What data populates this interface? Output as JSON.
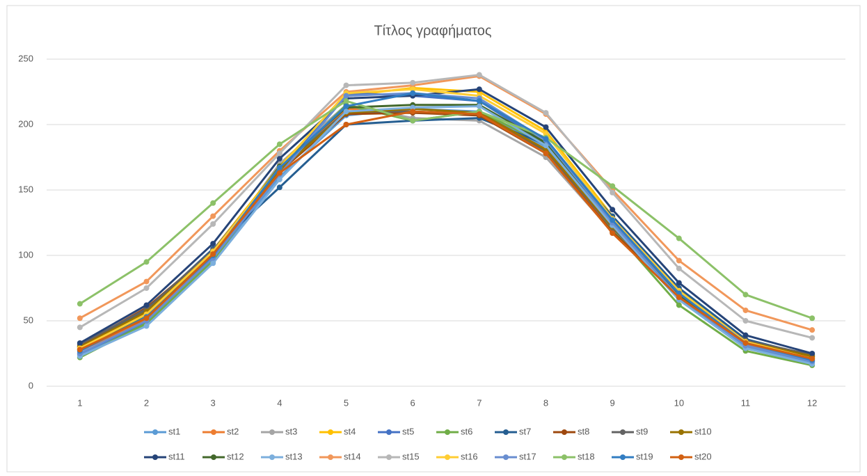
{
  "chart_data": {
    "type": "line",
    "title": "Τίτλος γραφήματος",
    "categories": [
      "1",
      "2",
      "3",
      "4",
      "5",
      "6",
      "7",
      "8",
      "9",
      "10",
      "11",
      "12"
    ],
    "ylim": [
      0,
      250
    ],
    "yticks": [
      0,
      50,
      100,
      150,
      200,
      250
    ],
    "grid": true,
    "legend": "bottom",
    "series": [
      {
        "name": "st1",
        "color": "#5B9BD5",
        "values": [
          24,
          47,
          95,
          160,
          207,
          212,
          210,
          183,
          122,
          66,
          30,
          18
        ]
      },
      {
        "name": "st2",
        "color": "#ED7D31",
        "values": [
          27,
          51,
          99,
          165,
          212,
          210,
          208,
          180,
          119,
          69,
          32,
          20
        ]
      },
      {
        "name": "st3",
        "color": "#A5A5A5",
        "values": [
          30,
          55,
          100,
          170,
          215,
          205,
          203,
          175,
          118,
          68,
          33,
          22
        ]
      },
      {
        "name": "st4",
        "color": "#FFC000",
        "values": [
          29,
          56,
          104,
          168,
          222,
          228,
          225,
          195,
          130,
          74,
          35,
          22
        ]
      },
      {
        "name": "st5",
        "color": "#4472C4",
        "values": [
          25,
          49,
          97,
          163,
          224,
          222,
          218,
          186,
          124,
          67,
          31,
          19
        ]
      },
      {
        "name": "st6",
        "color": "#70AD47",
        "values": [
          22,
          48,
          96,
          165,
          215,
          203,
          210,
          185,
          120,
          62,
          27,
          16
        ]
      },
      {
        "name": "st7",
        "color": "#255E91",
        "values": [
          30,
          58,
          105,
          152,
          200,
          203,
          205,
          185,
          130,
          75,
          36,
          23
        ]
      },
      {
        "name": "st8",
        "color": "#9E480E",
        "values": [
          31,
          60,
          103,
          164,
          208,
          209,
          207,
          178,
          118,
          70,
          34,
          23
        ]
      },
      {
        "name": "st9",
        "color": "#636363",
        "values": [
          32,
          59,
          104,
          166,
          210,
          210,
          208,
          180,
          121,
          71,
          35,
          24
        ]
      },
      {
        "name": "st10",
        "color": "#997300",
        "values": [
          30,
          57,
          102,
          165,
          209,
          212,
          209,
          181,
          122,
          72,
          34,
          23
        ]
      },
      {
        "name": "st11",
        "color": "#264478",
        "values": [
          33,
          62,
          109,
          174,
          220,
          222,
          227,
          198,
          135,
          79,
          39,
          25
        ]
      },
      {
        "name": "st12",
        "color": "#43682B",
        "values": [
          28,
          54,
          101,
          168,
          213,
          215,
          215,
          186,
          125,
          70,
          33,
          21
        ]
      },
      {
        "name": "st13",
        "color": "#7CAFDD",
        "values": [
          23,
          46,
          94,
          158,
          210,
          213,
          214,
          184,
          123,
          66,
          29,
          17
        ]
      },
      {
        "name": "st14",
        "color": "#F1975A",
        "values": [
          52,
          80,
          130,
          180,
          225,
          230,
          237,
          208,
          150,
          96,
          58,
          43
        ]
      },
      {
        "name": "st15",
        "color": "#B7B7B7",
        "values": [
          45,
          75,
          124,
          178,
          230,
          232,
          238,
          209,
          148,
          90,
          50,
          37
        ]
      },
      {
        "name": "st16",
        "color": "#FFCD33",
        "values": [
          29,
          55,
          103,
          167,
          224,
          227,
          222,
          193,
          128,
          73,
          34,
          21
        ]
      },
      {
        "name": "st17",
        "color": "#698ED0",
        "values": [
          25,
          50,
          98,
          162,
          222,
          224,
          220,
          188,
          125,
          68,
          31,
          19
        ]
      },
      {
        "name": "st18",
        "color": "#8CC168",
        "values": [
          63,
          95,
          140,
          185,
          218,
          203,
          210,
          190,
          153,
          113,
          70,
          52
        ]
      },
      {
        "name": "st19",
        "color": "#327DC2",
        "values": [
          27,
          53,
          100,
          167,
          214,
          224,
          218,
          189,
          127,
          71,
          33,
          20
        ]
      },
      {
        "name": "st20",
        "color": "#D26012",
        "values": [
          28,
          52,
          101,
          163,
          200,
          210,
          208,
          178,
          117,
          68,
          33,
          21
        ]
      }
    ]
  }
}
